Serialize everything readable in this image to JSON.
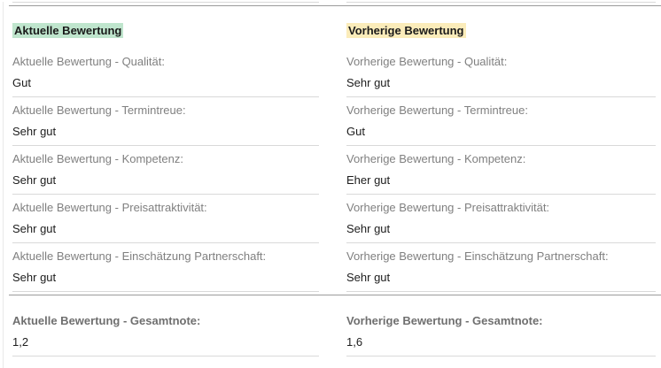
{
  "colors": {
    "highlight_current": "#bfe5cd",
    "highlight_previous": "#fbecba",
    "label_text": "#808080",
    "value_text": "#1c1c1c",
    "field_border": "#d9d9d9",
    "section_rule": "#9b9b9b"
  },
  "sections": [
    {
      "title": "Aktuelle Bewertung",
      "highlight": "#bfe5cd",
      "fields": [
        {
          "label": "Aktuelle Bewertung - Qualität:",
          "value": "Gut"
        },
        {
          "label": "Aktuelle Bewertung - Termintreue:",
          "value": "Sehr gut"
        },
        {
          "label": "Aktuelle Bewertung - Kompetenz:",
          "value": "Sehr gut"
        },
        {
          "label": "Aktuelle Bewertung - Preisattraktivität:",
          "value": "Sehr gut"
        },
        {
          "label": "Aktuelle Bewertung - Einschätzung Partnerschaft:",
          "value": "Sehr gut"
        }
      ],
      "total": {
        "label": "Aktuelle Bewertung - Gesamtnote:",
        "value": "1,2"
      }
    },
    {
      "title": "Vorherige Bewertung",
      "highlight": "#fbecba",
      "fields": [
        {
          "label": "Vorherige Bewertung - Qualität:",
          "value": "Sehr gut"
        },
        {
          "label": "Vorherige Bewertung - Termintreue:",
          "value": "Gut"
        },
        {
          "label": "Vorherige Bewertung - Kompetenz:",
          "value": "Eher gut"
        },
        {
          "label": "Vorherige Bewertung - Preisattraktivität:",
          "value": "Sehr gut"
        },
        {
          "label": "Vorherige Bewertung - Einschätzung Partnerschaft:",
          "value": "Sehr gut"
        }
      ],
      "total": {
        "label": "Vorherige Bewertung - Gesamtnote:",
        "value": "1,6"
      }
    }
  ]
}
